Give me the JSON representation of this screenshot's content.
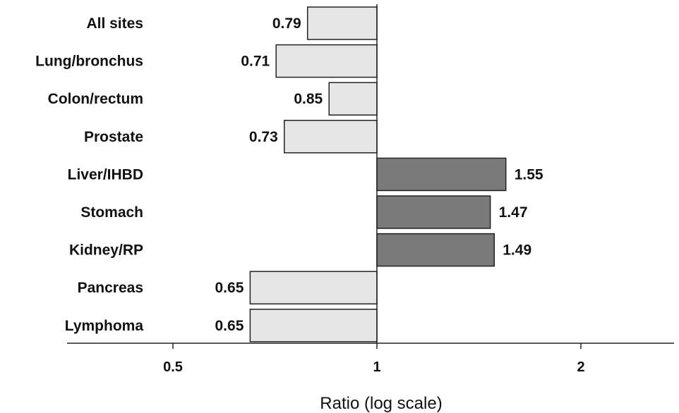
{
  "chart_data": {
    "type": "bar",
    "orientation": "horizontal",
    "xscale": "log",
    "baseline": 1,
    "xlim": [
      0.37,
      2.6
    ],
    "xticks": [
      0.5,
      1,
      2
    ],
    "xtick_labels": [
      "0.5",
      "1",
      "2"
    ],
    "xlabel": "Ratio (log scale)",
    "title": "",
    "categories": [
      "All sites",
      "Lung/bronchus",
      "Colon/rectum",
      "Prostate",
      "Liver/IHBD",
      "Stomach",
      "Kidney/RP",
      "Pancreas",
      "Lymphoma"
    ],
    "values": [
      0.79,
      0.71,
      0.85,
      0.73,
      1.55,
      1.47,
      1.49,
      0.65,
      0.65
    ],
    "value_labels": [
      "0.79",
      "0.71",
      "0.85",
      "0.73",
      "1.55",
      "1.47",
      "1.49",
      "0.65",
      "0.65"
    ],
    "colors": {
      "below_one": "#e6e6e6",
      "above_one": "#7a7a7a",
      "outline": "#222222"
    },
    "grid": false,
    "legend": "none"
  }
}
